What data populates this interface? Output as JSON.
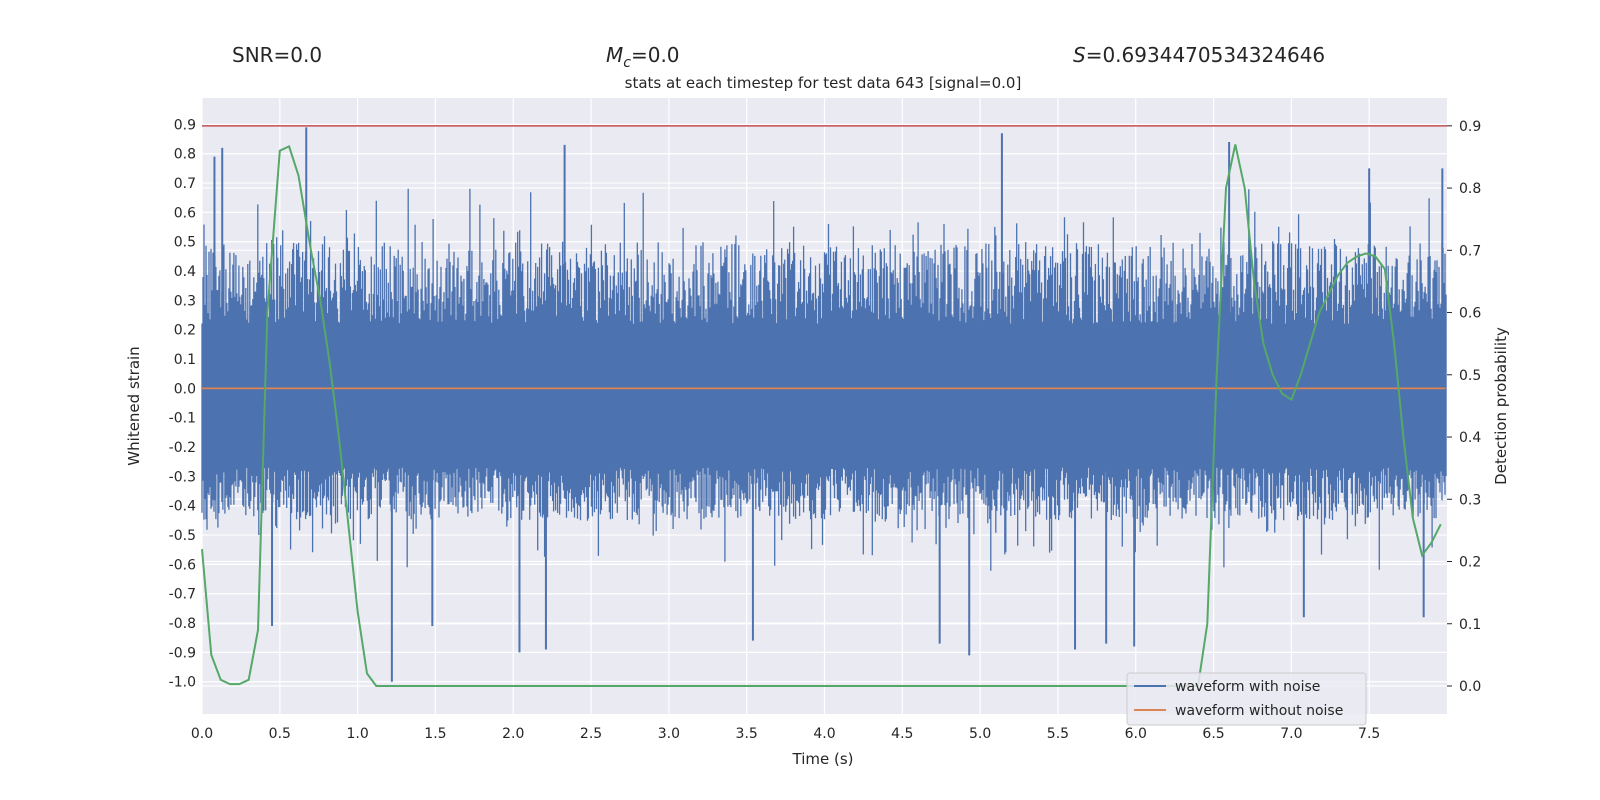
{
  "header": {
    "snr_text": "SNR=0.0",
    "mc_symbol": "M",
    "mc_sub": "c",
    "mc_value": "=0.0",
    "s_symbol": "S",
    "s_value": "=0.6934470534324646",
    "subtitle": "stats at each timestep for test data 643 [signal=0.0]"
  },
  "colors": {
    "background": "#eaeaf2",
    "grid": "#ffffff",
    "noise_waveform": "#4c72b0",
    "clean_waveform": "#dd8452",
    "probability": "#55a868",
    "threshold": "#c44e52"
  },
  "chart_data": {
    "type": "line",
    "xlabel": "Time (s)",
    "ylabel": "Whitened strain",
    "y2label": "Detection probability",
    "xlim": [
      0.0,
      8.0
    ],
    "ylim": [
      -1.11,
      0.99
    ],
    "y2lim": [
      -0.045,
      0.9447
    ],
    "xticks": [
      "0.0",
      "0.5",
      "1.0",
      "1.5",
      "2.0",
      "2.5",
      "3.0",
      "3.5",
      "4.0",
      "4.5",
      "5.0",
      "5.5",
      "6.0",
      "6.5",
      "7.0",
      "7.5"
    ],
    "yticks": [
      "0.9",
      "0.8",
      "0.7",
      "0.6",
      "0.5",
      "0.4",
      "0.3",
      "0.2",
      "0.1",
      "0.0",
      "-0.1",
      "-0.2",
      "-0.3",
      "-0.4",
      "-0.5",
      "-0.6",
      "-0.7",
      "-0.8",
      "-0.9",
      "-1.0"
    ],
    "y2ticks": [
      "0.9",
      "0.8",
      "0.7",
      "0.6",
      "0.5",
      "0.4",
      "0.3",
      "0.2",
      "0.1",
      "0.0"
    ],
    "grid": true,
    "legend_position": "bottom-right",
    "threshold_y2": 0.9,
    "series": [
      {
        "name": "waveform with noise",
        "axis": "left",
        "style": "dense-noise",
        "typical_band": [
          -0.45,
          0.5
        ],
        "peaks": [
          [
            0.08,
            0.79
          ],
          [
            0.13,
            0.82
          ],
          [
            0.67,
            0.89
          ],
          [
            0.45,
            -0.81
          ],
          [
            1.22,
            -1.0
          ],
          [
            1.48,
            -0.81
          ],
          [
            2.04,
            -0.9
          ],
          [
            2.21,
            -0.89
          ],
          [
            2.33,
            0.83
          ],
          [
            3.54,
            -0.86
          ],
          [
            4.74,
            -0.87
          ],
          [
            4.93,
            -0.91
          ],
          [
            5.14,
            0.87
          ],
          [
            5.61,
            -0.89
          ],
          [
            5.81,
            -0.87
          ],
          [
            5.99,
            -0.88
          ],
          [
            6.6,
            0.84
          ],
          [
            7.08,
            -0.78
          ],
          [
            7.5,
            0.75
          ],
          [
            7.85,
            -0.78
          ],
          [
            7.97,
            0.75
          ]
        ]
      },
      {
        "name": "waveform without noise",
        "axis": "left",
        "x": [
          0.0,
          7.99
        ],
        "y": [
          0.0,
          0.0
        ]
      },
      {
        "name": "detection probability",
        "axis": "right",
        "x": [
          0.0,
          0.06,
          0.12,
          0.18,
          0.24,
          0.3,
          0.36,
          0.42,
          0.5,
          0.56,
          0.62,
          0.7,
          0.76,
          0.82,
          0.88,
          0.94,
          1.0,
          1.06,
          1.12,
          1.2,
          1.3,
          1.5,
          2.0,
          3.0,
          4.0,
          5.0,
          6.0,
          6.4,
          6.46,
          6.52,
          6.58,
          6.64,
          6.7,
          6.76,
          6.82,
          6.88,
          6.94,
          7.0,
          7.06,
          7.12,
          7.18,
          7.24,
          7.3,
          7.36,
          7.42,
          7.48,
          7.54,
          7.6,
          7.66,
          7.72,
          7.78,
          7.84,
          7.9,
          7.96
        ],
        "y": [
          0.22,
          0.05,
          0.01,
          0.003,
          0.003,
          0.01,
          0.09,
          0.6,
          0.86,
          0.867,
          0.82,
          0.7,
          0.62,
          0.52,
          0.4,
          0.26,
          0.12,
          0.02,
          0.0,
          0.0,
          0.0,
          0.0,
          0.0,
          0.0,
          0.0,
          0.0,
          0.0,
          0.0,
          0.1,
          0.5,
          0.8,
          0.87,
          0.8,
          0.65,
          0.55,
          0.5,
          0.47,
          0.46,
          0.5,
          0.55,
          0.6,
          0.63,
          0.66,
          0.68,
          0.69,
          0.695,
          0.69,
          0.67,
          0.55,
          0.4,
          0.27,
          0.21,
          0.23,
          0.26
        ]
      }
    ]
  }
}
